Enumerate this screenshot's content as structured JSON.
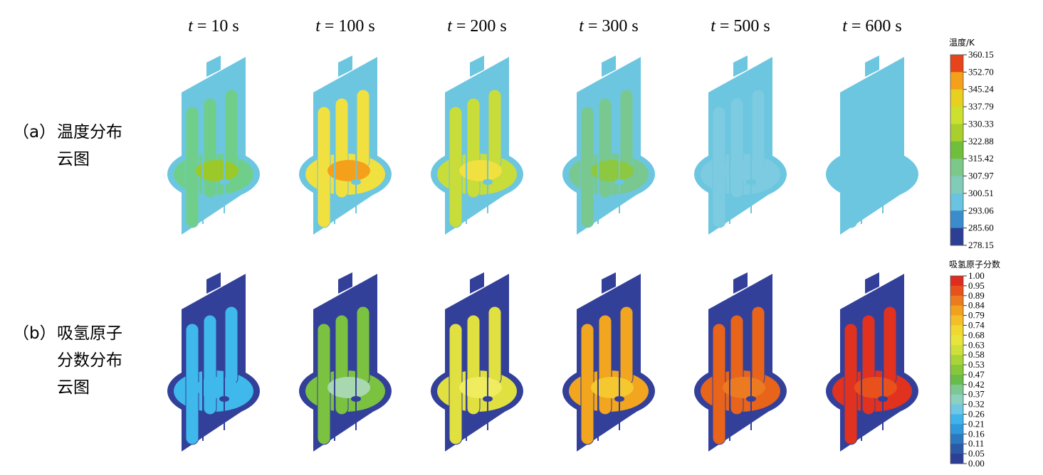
{
  "columns": [
    {
      "symbol": "t",
      "text": "= 10 s"
    },
    {
      "symbol": "t",
      "text": "= 100 s"
    },
    {
      "symbol": "t",
      "text": "= 200 s"
    },
    {
      "symbol": "t",
      "text": "= 300 s"
    },
    {
      "symbol": "t",
      "text": "= 500 s"
    },
    {
      "symbol": "t",
      "text": "= 600 s"
    }
  ],
  "rows": [
    {
      "label": "（a）",
      "lines": [
        "温度分布",
        "云图"
      ],
      "base": "#6cc6e0",
      "fills": [
        [
          "#6fcf8a",
          "#9bc92a"
        ],
        [
          "#f0e040",
          "#f5a01a"
        ],
        [
          "#c8dc3a",
          "#f0e040"
        ],
        [
          "#78c890",
          "#8cc840"
        ],
        [
          "#7dcbe0",
          "#7dcbe0"
        ],
        [
          "#6cc6e0",
          "#6cc6e0"
        ]
      ]
    },
    {
      "label": "（b）",
      "lines": [
        "吸氢原子",
        "分数分布",
        "云图"
      ],
      "base": "#33409a",
      "fills": [
        [
          "#3fb8ec",
          "#3fb8ec"
        ],
        [
          "#7cc241",
          "#a8d8b0"
        ],
        [
          "#e0e040",
          "#f0ec60"
        ],
        [
          "#f2a51e",
          "#f5c830"
        ],
        [
          "#e8641a",
          "#ec7a20"
        ],
        [
          "#e0321e",
          "#e8501c"
        ]
      ]
    }
  ],
  "colorbars": [
    {
      "title": "温度/K",
      "labels": [
        "360.15",
        "352.70",
        "345.24",
        "337.79",
        "330.33",
        "322.88",
        "315.42",
        "307.97",
        "300.51",
        "293.06",
        "285.60",
        "278.15"
      ],
      "colors": [
        "#e8441c",
        "#f5a01a",
        "#e8d020",
        "#cce030",
        "#a8cf2c",
        "#6fbf3a",
        "#7cc88a",
        "#80ccb8",
        "#68c4e0",
        "#3a8ccc",
        "#2c3e96"
      ]
    },
    {
      "title": "吸氢原子分数",
      "labels": [
        "1.00",
        "0.95",
        "0.89",
        "0.84",
        "0.79",
        "0.74",
        "0.68",
        "0.63",
        "0.58",
        "0.53",
        "0.47",
        "0.42",
        "0.37",
        "0.32",
        "0.26",
        "0.21",
        "0.16",
        "0.11",
        "0.05",
        "0.00"
      ],
      "colors": [
        "#e02c1e",
        "#e8501c",
        "#ec7a1e",
        "#f2a01e",
        "#f4be28",
        "#f0d830",
        "#e8e43c",
        "#cfe03c",
        "#a8d438",
        "#86c83a",
        "#68bc48",
        "#7cc890",
        "#8cd0c0",
        "#6ec8e4",
        "#3fb4ec",
        "#3098dc",
        "#2c78c0",
        "#2c58a8",
        "#2c3e96"
      ]
    }
  ]
}
